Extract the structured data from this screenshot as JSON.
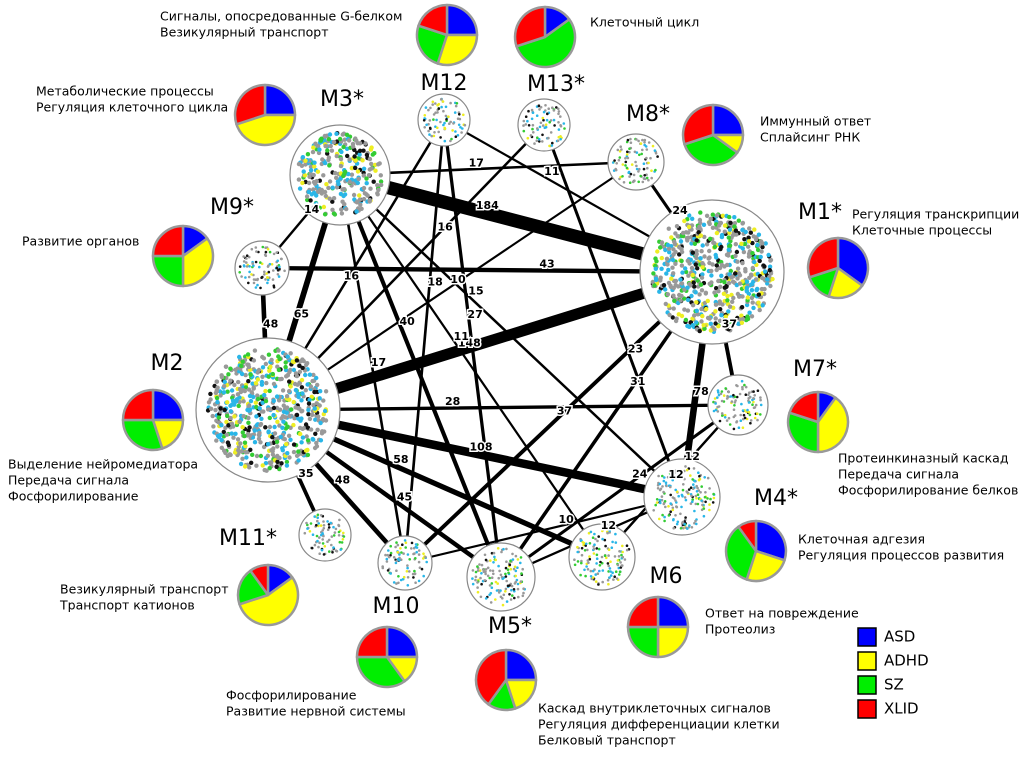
{
  "legend": [
    {
      "name": "ASD",
      "color": "#0000ff"
    },
    {
      "name": "ADHD",
      "color": "#ffff00"
    },
    {
      "name": "SZ",
      "color": "#00ee00"
    },
    {
      "name": "XLID",
      "color": "#ff0000"
    }
  ],
  "modules": [
    {
      "name": "M3*",
      "terms": [
        "Метаболические процессы",
        "Регуляция клеточного цикла"
      ],
      "pie": [
        25,
        45,
        0,
        30
      ]
    },
    {
      "name": "M12",
      "terms": [
        "Сигналы, опосредованные G-белком",
        "Везикулярный транспорт"
      ],
      "pie": [
        25,
        30,
        25,
        20
      ]
    },
    {
      "name": "M13*",
      "terms": [
        "Клеточный цикл"
      ],
      "pie": [
        15,
        0,
        55,
        30
      ]
    },
    {
      "name": "M8*",
      "terms": [
        "Иммунный ответ",
        "Сплайсинг РНК"
      ],
      "pie": [
        25,
        10,
        35,
        30
      ]
    },
    {
      "name": "M1*",
      "terms": [
        "Регуляция транскрипции",
        "Клеточные процессы"
      ],
      "pie": [
        35,
        20,
        15,
        30
      ]
    },
    {
      "name": "M7*",
      "terms": [
        "Протеинкиназный каскад",
        "Передача сигнала",
        "Фосфорилирование белков"
      ],
      "pie": [
        10,
        40,
        30,
        20
      ]
    },
    {
      "name": "M4*",
      "terms": [
        "Клеточная адгезия",
        "Регуляция процессов развития"
      ],
      "pie": [
        30,
        25,
        35,
        10
      ]
    },
    {
      "name": "M6",
      "terms": [
        "Ответ на повреждение",
        "Протеолиз"
      ],
      "pie": [
        25,
        25,
        25,
        25
      ]
    },
    {
      "name": "M5*",
      "terms": [
        "Каскад внутриклеточных сигналов",
        "Регуляция дифференциации клетки",
        "Белковый транспорт"
      ],
      "pie": [
        25,
        20,
        15,
        40
      ]
    },
    {
      "name": "M10",
      "terms": [
        "Фосфорилирование",
        "Развитие нервной системы"
      ],
      "pie": [
        25,
        15,
        35,
        25
      ]
    },
    {
      "name": "M11*",
      "terms": [
        "Везикулярный транспорт",
        "Транспорт катионов"
      ],
      "pie": [
        15,
        55,
        20,
        10
      ]
    },
    {
      "name": "M2",
      "terms": [
        "Выделение нейромедиатора",
        "Передача сигнала",
        "Фосфорилирование"
      ],
      "pie": [
        25,
        20,
        30,
        25
      ]
    },
    {
      "name": "M9*",
      "terms": [
        "Развитие органов"
      ],
      "pie": [
        15,
        35,
        25,
        25
      ]
    }
  ],
  "edges": [
    {
      "from": "M3*",
      "to": "M1*",
      "weight": 184
    },
    {
      "from": "M2",
      "to": "M1*",
      "weight": 148
    },
    {
      "from": "M2",
      "to": "M4*",
      "weight": 108
    },
    {
      "from": "M1*",
      "to": "M4*",
      "weight": 78
    },
    {
      "from": "M3*",
      "to": "M2",
      "weight": 65
    },
    {
      "from": "M2",
      "to": "M6",
      "weight": 58
    },
    {
      "from": "M9*",
      "to": "M2",
      "weight": 48
    },
    {
      "from": "M2",
      "to": "M10",
      "weight": 48
    },
    {
      "from": "M2",
      "to": "M5*",
      "weight": 45
    },
    {
      "from": "M9*",
      "to": "M1*",
      "weight": 43
    },
    {
      "from": "M3*",
      "to": "M5*",
      "weight": 40
    },
    {
      "from": "M1*",
      "to": "M7*",
      "weight": 37
    },
    {
      "from": "M10",
      "to": "M1*",
      "weight": 37
    },
    {
      "from": "M2",
      "to": "M11*",
      "weight": 35
    },
    {
      "from": "M5*",
      "to": "M1*",
      "weight": 31
    },
    {
      "from": "M2",
      "to": "M7*",
      "weight": 28
    },
    {
      "from": "M12",
      "to": "M5*",
      "weight": 27
    },
    {
      "from": "M8*",
      "to": "M1*",
      "weight": 24
    },
    {
      "from": "M5*",
      "to": "M7*",
      "weight": 24
    },
    {
      "from": "M13*",
      "to": "M4*",
      "weight": 23
    },
    {
      "from": "M12",
      "to": "M10",
      "weight": 18
    },
    {
      "from": "M3*",
      "to": "M8*",
      "weight": 17
    },
    {
      "from": "M3*",
      "to": "M10",
      "weight": 17
    },
    {
      "from": "M12",
      "to": "M2",
      "weight": 16
    },
    {
      "from": "M2",
      "to": "M13*",
      "weight": 16
    },
    {
      "from": "M3*",
      "to": "M4*",
      "weight": 15
    },
    {
      "from": "M3*",
      "to": "M9*",
      "weight": 14
    },
    {
      "from": "M7*",
      "to": "M6",
      "weight": 12
    },
    {
      "from": "M5*",
      "to": "M4*",
      "weight": 12
    },
    {
      "from": "M6",
      "to": "M7*",
      "weight": 12
    },
    {
      "from": "M12",
      "to": "M1*",
      "weight": 11
    },
    {
      "from": "M3*",
      "to": "M6",
      "weight": 11
    },
    {
      "from": "M2",
      "to": "M8*",
      "weight": 10
    },
    {
      "from": "M10",
      "to": "M4*",
      "weight": 10
    }
  ]
}
